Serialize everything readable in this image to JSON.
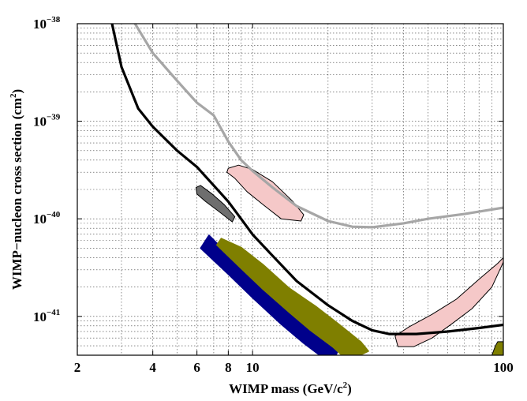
{
  "chart_data": {
    "type": "line",
    "xlabel": "WIMP mass (GeV/c",
    "xlabel_sup": "2",
    "xlabel_end": ")",
    "ylabel": "WIMP−nucleon cross section (cm",
    "ylabel_sup": "2",
    "ylabel_end": ")",
    "x_scale": "log",
    "y_scale": "log",
    "xlim": [
      2,
      100
    ],
    "ylim": [
      4e-42,
      1e-38
    ],
    "grid": true,
    "x_ticks": [
      {
        "value": 2,
        "label": "2"
      },
      {
        "value": 4,
        "label": "4"
      },
      {
        "value": 6,
        "label": "6"
      },
      {
        "value": 8,
        "label": "8"
      },
      {
        "value": 10,
        "label": "10"
      },
      {
        "value": 100,
        "label": "100"
      }
    ],
    "y_ticks": [
      {
        "value": 1e-38,
        "base": "10",
        "exp": "−38"
      },
      {
        "value": 1e-39,
        "base": "10",
        "exp": "−39"
      },
      {
        "value": 1e-40,
        "base": "10",
        "exp": "−40"
      },
      {
        "value": 1e-41,
        "base": "10",
        "exp": "−41"
      }
    ],
    "series": [
      {
        "kind": "line",
        "color": "#000000",
        "points": [
          [
            2.75,
            1e-38
          ],
          [
            3.0,
            3.6e-39
          ],
          [
            3.5,
            1.35e-39
          ],
          [
            4.0,
            8.8e-40
          ],
          [
            5.0,
            5e-40
          ],
          [
            6.0,
            3.4e-40
          ],
          [
            7.0,
            2.2e-40
          ],
          [
            8.0,
            1.5e-40
          ],
          [
            9.0,
            1e-40
          ],
          [
            10.0,
            6.9e-41
          ],
          [
            12.0,
            4.2e-41
          ],
          [
            15.0,
            2.3e-41
          ],
          [
            20.0,
            1.3e-41
          ],
          [
            25.0,
            9e-42
          ],
          [
            30.0,
            7.2e-42
          ],
          [
            35.0,
            6.6e-42
          ],
          [
            45.0,
            6.6e-42
          ],
          [
            60.0,
            7e-42
          ],
          [
            80.0,
            7.6e-42
          ],
          [
            100.0,
            8.2e-42
          ]
        ]
      },
      {
        "kind": "line",
        "color": "#a6a6a6",
        "points": [
          [
            3.4,
            1e-38
          ],
          [
            4.0,
            5e-39
          ],
          [
            5.0,
            2.6e-39
          ],
          [
            6.0,
            1.55e-39
          ],
          [
            7.0,
            1.15e-39
          ],
          [
            8.0,
            6.2e-40
          ],
          [
            9.0,
            4e-40
          ],
          [
            10.0,
            3.1e-40
          ],
          [
            12.0,
            2.1e-40
          ],
          [
            15.0,
            1.35e-40
          ],
          [
            20.0,
            9.5e-41
          ],
          [
            25.0,
            8.3e-41
          ],
          [
            30.0,
            8.2e-41
          ],
          [
            40.0,
            9e-41
          ],
          [
            50.0,
            1e-40
          ],
          [
            70.0,
            1.12e-40
          ],
          [
            100.0,
            1.3e-40
          ]
        ]
      },
      {
        "kind": "band",
        "color": "#00008b",
        "lower": [
          [
            6.2,
            5e-41
          ],
          [
            8.0,
            2.7e-41
          ],
          [
            10.0,
            1.55e-41
          ],
          [
            13.0,
            8.3e-42
          ],
          [
            16.0,
            5.3e-42
          ],
          [
            19.0,
            3.8e-42
          ],
          [
            21.0,
            3.4e-42
          ]
        ],
        "upper": [
          [
            6.7,
            6.8e-41
          ],
          [
            8.0,
            4.3e-41
          ],
          [
            10.0,
            2.5e-41
          ],
          [
            13.0,
            1.35e-41
          ],
          [
            16.0,
            8.6e-42
          ],
          [
            19.0,
            6.3e-42
          ],
          [
            22.0,
            4.6e-42
          ]
        ]
      },
      {
        "kind": "band",
        "color": "#7f7f00",
        "lower": [
          [
            7.2,
            5.4e-41
          ],
          [
            9.0,
            3.1e-41
          ],
          [
            11.0,
            1.9e-41
          ],
          [
            14.0,
            1.1e-41
          ],
          [
            17.0,
            7.2e-42
          ],
          [
            21.0,
            4.8e-42
          ],
          [
            24.0,
            3.5e-42
          ]
        ],
        "upper": [
          [
            7.5,
            6.3e-41
          ],
          [
            9.0,
            5.1e-41
          ],
          [
            11.0,
            3.4e-41
          ],
          [
            14.0,
            1.95e-41
          ],
          [
            18.0,
            1.25e-41
          ],
          [
            22.0,
            8.4e-42
          ],
          [
            27.0,
            5.5e-42
          ],
          [
            29.0,
            4.4e-42
          ]
        ]
      },
      {
        "kind": "region",
        "color": "#6e6e6e",
        "outline": [
          [
            6.2,
            2.2e-40
          ],
          [
            6.9,
            1.8e-40
          ],
          [
            7.7,
            1.4e-40
          ],
          [
            8.5,
            1.05e-40
          ],
          [
            8.3,
            9.3e-41
          ],
          [
            7.3,
            1.2e-40
          ],
          [
            6.5,
            1.5e-40
          ],
          [
            6.0,
            1.8e-40
          ],
          [
            5.95,
            2.1e-40
          ]
        ]
      },
      {
        "kind": "region",
        "color": "#f5c8c8",
        "outline": [
          [
            8.0,
            3.3e-40
          ],
          [
            8.8,
            3.55e-40
          ],
          [
            10.0,
            3.2e-40
          ],
          [
            12.0,
            2.4e-40
          ],
          [
            14.5,
            1.5e-40
          ],
          [
            16.0,
            1.1e-40
          ],
          [
            15.6,
            9.5e-41
          ],
          [
            13.0,
            1e-40
          ],
          [
            11.0,
            1.4e-40
          ],
          [
            9.5,
            1.9e-40
          ],
          [
            8.5,
            2.6e-40
          ],
          [
            7.9,
            3e-40
          ]
        ]
      },
      {
        "kind": "region",
        "color": "#f5c8c8",
        "outline": [
          [
            100.0,
            3.6e-41
          ],
          [
            90.0,
            2e-41
          ],
          [
            75.0,
            1.2e-41
          ],
          [
            62.0,
            8.3e-42
          ],
          [
            52.0,
            6e-42
          ],
          [
            44.0,
            4.9e-42
          ],
          [
            38.0,
            4.9e-42
          ],
          [
            37.0,
            6.3e-42
          ],
          [
            42.0,
            7.8e-42
          ],
          [
            52.0,
            1.05e-41
          ],
          [
            65.0,
            1.5e-41
          ],
          [
            80.0,
            2.4e-41
          ],
          [
            95.0,
            3.5e-41
          ],
          [
            100.0,
            4e-41
          ]
        ]
      },
      {
        "kind": "region",
        "color": "#7f7f00",
        "outline": [
          [
            90.0,
            4e-42
          ],
          [
            93.0,
            5e-42
          ],
          [
            95.0,
            5.5e-42
          ],
          [
            100.0,
            5.5e-42
          ],
          [
            100.0,
            4e-42
          ]
        ]
      }
    ]
  }
}
